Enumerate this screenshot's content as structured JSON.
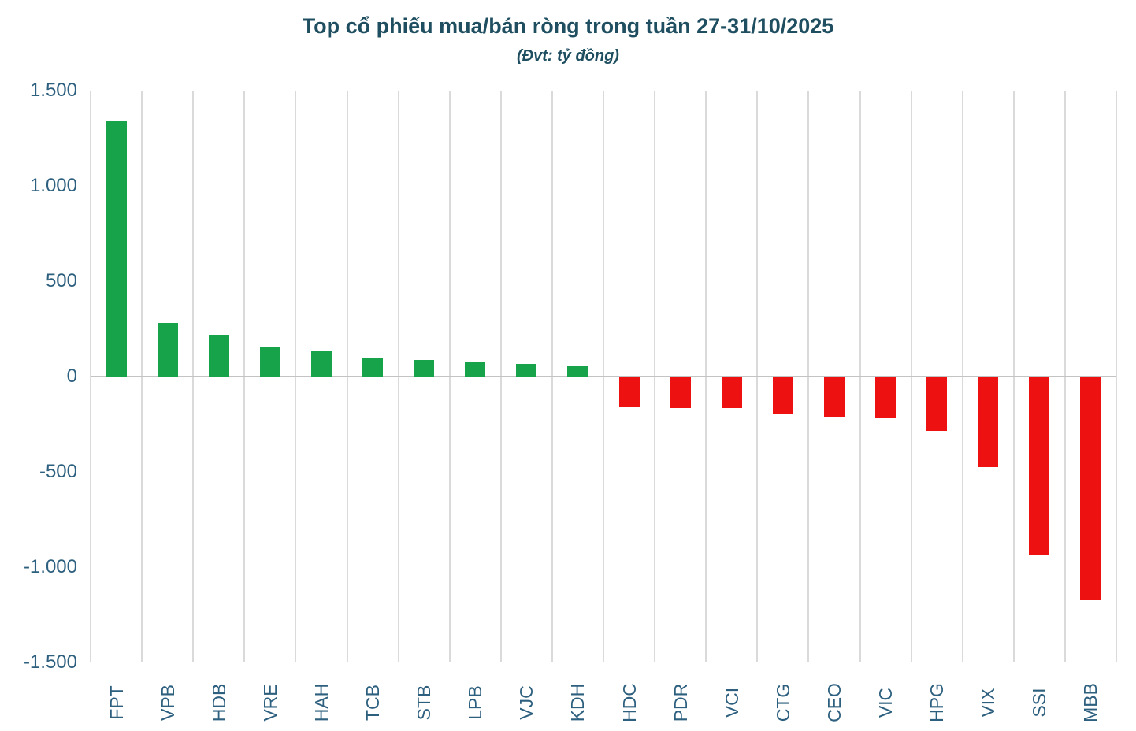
{
  "title": "Top cổ phiếu mua/bán ròng trong tuần 27-31/10/2025",
  "subtitle": "(Đvt: tỷ đồng)",
  "chart_data": {
    "type": "bar",
    "title": "Top cổ phiếu mua/bán ròng trong tuần 27-31/10/2025",
    "subtitle": "(Đvt: tỷ đồng)",
    "unit": "tỷ đồng",
    "categories": [
      "FPT",
      "VPB",
      "HDB",
      "VRE",
      "HAH",
      "TCB",
      "STB",
      "LPB",
      "VJC",
      "KDH",
      "HDC",
      "PDR",
      "VCI",
      "CTG",
      "CEO",
      "VIC",
      "HPG",
      "VIX",
      "SSI",
      "MBB"
    ],
    "values": [
      1345,
      280,
      220,
      155,
      135,
      100,
      88,
      78,
      65,
      52,
      -160,
      -164,
      -167,
      -200,
      -214,
      -218,
      -283,
      -473,
      -936,
      -1173
    ],
    "ylim": [
      -1500,
      1500
    ],
    "ytick_interval": 500,
    "ytick_labels": [
      "1.500",
      "1.000",
      "500",
      "0",
      "-500",
      "-1.000",
      "-1.500"
    ],
    "xlabel": "",
    "ylabel": "",
    "legend": "none",
    "grid": "vertical-category-separators-only",
    "bar_color_rule": "positive=green, negative=red",
    "colors": {
      "positive": "#17a34a",
      "negative": "#ee1111",
      "title": "#1e4e60",
      "tick_label": "#2d5f7e",
      "gridline": "#dadada",
      "zero_line": "#c3c3c3",
      "background": "#ffffff"
    }
  }
}
